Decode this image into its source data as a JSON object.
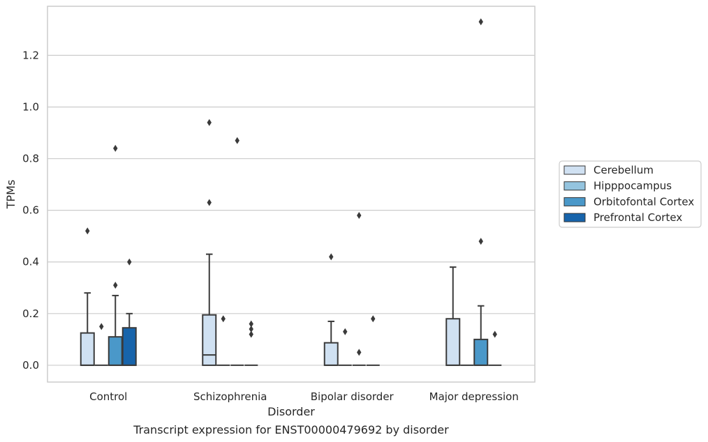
{
  "chart_data": {
    "type": "box",
    "title": "Transcript expression for ENST00000479692 by disorder",
    "xlabel": "Disorder",
    "ylabel": "TPMs",
    "ylim": [
      -0.065,
      1.39
    ],
    "yticks": [
      "0.0",
      "0.2",
      "0.4",
      "0.6",
      "0.8",
      "1.0",
      "1.2"
    ],
    "grid": "horizontal",
    "legend_position": "right",
    "categories": [
      "Control",
      "Schizophrenia",
      "Bipolar disorder",
      "Major depression"
    ],
    "series": [
      {
        "name": "Cerebellum",
        "color": "#d0e1f2",
        "boxes": [
          {
            "q1": 0,
            "median": 0,
            "q3": 0.125,
            "whisker_low": 0,
            "whisker_high": 0.28,
            "outliers": [
              0.52
            ]
          },
          {
            "q1": 0,
            "median": 0.04,
            "q3": 0.195,
            "whisker_low": 0,
            "whisker_high": 0.43,
            "outliers": [
              0.63,
              0.94
            ]
          },
          {
            "q1": 0,
            "median": 0,
            "q3": 0.087,
            "whisker_low": 0,
            "whisker_high": 0.17,
            "outliers": [
              0.42
            ]
          },
          {
            "q1": 0,
            "median": 0,
            "q3": 0.18,
            "whisker_low": 0,
            "whisker_high": 0.38,
            "outliers": []
          }
        ]
      },
      {
        "name": "Hipppocampus",
        "color": "#94c4df",
        "boxes": [
          {
            "q1": 0,
            "median": 0,
            "q3": 0,
            "whisker_low": 0,
            "whisker_high": 0,
            "outliers": [
              0.15
            ]
          },
          {
            "q1": 0,
            "median": 0,
            "q3": 0,
            "whisker_low": 0,
            "whisker_high": 0,
            "outliers": [
              0.18
            ]
          },
          {
            "q1": 0,
            "median": 0,
            "q3": 0,
            "whisker_low": 0,
            "whisker_high": 0,
            "outliers": [
              0.13
            ]
          },
          {
            "q1": 0,
            "median": 0,
            "q3": 0,
            "whisker_low": 0,
            "whisker_high": 0,
            "outliers": []
          }
        ]
      },
      {
        "name": "Orbitofontal Cortex",
        "color": "#4a98c9",
        "boxes": [
          {
            "q1": 0,
            "median": 0,
            "q3": 0.11,
            "whisker_low": 0,
            "whisker_high": 0.27,
            "outliers": [
              0.31,
              0.84
            ]
          },
          {
            "q1": 0,
            "median": 0,
            "q3": 0,
            "whisker_low": 0,
            "whisker_high": 0,
            "outliers": [
              0.87
            ]
          },
          {
            "q1": 0,
            "median": 0,
            "q3": 0,
            "whisker_low": 0,
            "whisker_high": 0,
            "outliers": [
              0.05,
              0.58
            ]
          },
          {
            "q1": 0,
            "median": 0,
            "q3": 0.1,
            "whisker_low": 0,
            "whisker_high": 0.23,
            "outliers": [
              0.48,
              1.33
            ]
          }
        ]
      },
      {
        "name": "Prefrontal Cortex",
        "color": "#1764ab",
        "boxes": [
          {
            "q1": 0,
            "median": 0,
            "q3": 0.145,
            "whisker_low": 0,
            "whisker_high": 0.2,
            "outliers": [
              0.4
            ]
          },
          {
            "q1": 0,
            "median": 0,
            "q3": 0,
            "whisker_low": 0,
            "whisker_high": 0,
            "outliers": [
              0.12,
              0.14,
              0.16
            ]
          },
          {
            "q1": 0,
            "median": 0,
            "q3": 0,
            "whisker_low": 0,
            "whisker_high": 0,
            "outliers": [
              0.18
            ]
          },
          {
            "q1": 0,
            "median": 0,
            "q3": 0,
            "whisker_low": 0,
            "whisker_high": 0,
            "outliers": [
              0.12
            ]
          }
        ]
      }
    ]
  }
}
